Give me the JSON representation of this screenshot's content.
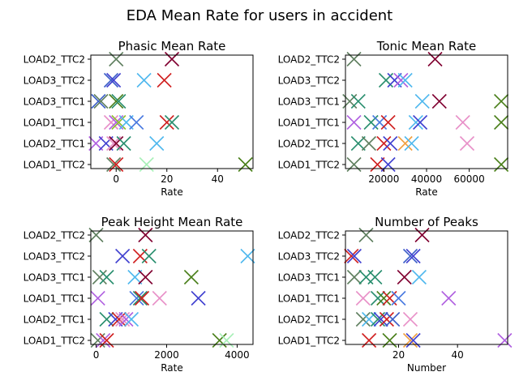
{
  "figure": {
    "title": "EDA Mean Rate for users in accident"
  },
  "chart_data": [
    {
      "type": "scatter",
      "title": "Phasic Mean Rate",
      "xlabel": "Rate",
      "ylabel": "",
      "xlim": [
        -10,
        54
      ],
      "xticks": [
        0,
        20,
        40
      ],
      "categories": [
        "LOAD1_TTC2",
        "LOAD2_TTC1",
        "LOAD1_TTC1",
        "LOAD3_TTC1",
        "LOAD3_TTC2",
        "LOAD2_TTC2"
      ],
      "points": [
        {
          "category": "LOAD2_TTC2",
          "x": 0,
          "color": "#5f7f5f"
        },
        {
          "category": "LOAD2_TTC2",
          "x": 22,
          "color": "#800030"
        },
        {
          "category": "LOAD3_TTC2",
          "x": -2,
          "color": "#3c5fc8"
        },
        {
          "category": "LOAD3_TTC2",
          "x": -1,
          "color": "#4040d0"
        },
        {
          "category": "LOAD3_TTC2",
          "x": 11,
          "color": "#4fb8ee"
        },
        {
          "category": "LOAD3_TTC2",
          "x": 19,
          "color": "#d02020"
        },
        {
          "category": "LOAD3_TTC1",
          "x": -7,
          "color": "#3c5fc8"
        },
        {
          "category": "LOAD3_TTC1",
          "x": -6,
          "color": "#5f7f5f"
        },
        {
          "category": "LOAD3_TTC1",
          "x": 0,
          "color": "#4a7f1a"
        },
        {
          "category": "LOAD3_TTC1",
          "x": 1,
          "color": "#2a8f6f"
        },
        {
          "category": "LOAD1_TTC1",
          "x": -2,
          "color": "#e890c8"
        },
        {
          "category": "LOAD1_TTC1",
          "x": 0,
          "color": "#b060e0"
        },
        {
          "category": "LOAD1_TTC1",
          "x": 1,
          "color": "#8fbf30"
        },
        {
          "category": "LOAD1_TTC1",
          "x": 4,
          "color": "#4fb8ee"
        },
        {
          "category": "LOAD1_TTC1",
          "x": 8,
          "color": "#4a7ae0"
        },
        {
          "category": "LOAD1_TTC1",
          "x": 20,
          "color": "#d02020"
        },
        {
          "category": "LOAD1_TTC1",
          "x": 22,
          "color": "#2a8f6f"
        },
        {
          "category": "LOAD2_TTC1",
          "x": -8,
          "color": "#b060e0"
        },
        {
          "category": "LOAD2_TTC1",
          "x": -4,
          "color": "#4040d0"
        },
        {
          "category": "LOAD2_TTC1",
          "x": -1,
          "color": "#e890c8"
        },
        {
          "category": "LOAD2_TTC1",
          "x": 0,
          "color": "#800030"
        },
        {
          "category": "LOAD2_TTC1",
          "x": 3,
          "color": "#2a8f6f"
        },
        {
          "category": "LOAD2_TTC1",
          "x": 16,
          "color": "#4fb8ee"
        },
        {
          "category": "LOAD1_TTC2",
          "x": -1,
          "color": "#5f7f5f"
        },
        {
          "category": "LOAD1_TTC2",
          "x": 0,
          "color": "#d02020"
        },
        {
          "category": "LOAD1_TTC2",
          "x": 12,
          "color": "#a8f0b8"
        },
        {
          "category": "LOAD1_TTC2",
          "x": 51,
          "color": "#4a7f1a"
        }
      ]
    },
    {
      "type": "scatter",
      "title": "Tonic Mean Rate",
      "xlabel": "Rate",
      "ylabel": "",
      "xlim": [
        2000,
        78000
      ],
      "xticks": [
        20000,
        40000,
        60000
      ],
      "categories": [
        "LOAD1_TTC2",
        "LOAD2_TTC1",
        "LOAD1_TTC1",
        "LOAD3_TTC1",
        "LOAD3_TTC2",
        "LOAD2_TTC2"
      ],
      "points": [
        {
          "category": "LOAD2_TTC2",
          "x": 6000,
          "color": "#5f7f5f"
        },
        {
          "category": "LOAD2_TTC2",
          "x": 44000,
          "color": "#800030"
        },
        {
          "category": "LOAD3_TTC2",
          "x": 21000,
          "color": "#2a8f6f"
        },
        {
          "category": "LOAD3_TTC2",
          "x": 25000,
          "color": "#4040d0"
        },
        {
          "category": "LOAD3_TTC2",
          "x": 28000,
          "color": "#b060e0"
        },
        {
          "category": "LOAD3_TTC2",
          "x": 30000,
          "color": "#4fb8ee"
        },
        {
          "category": "LOAD3_TTC1",
          "x": 4000,
          "color": "#5f7f5f"
        },
        {
          "category": "LOAD3_TTC1",
          "x": 8000,
          "color": "#2a8f6f"
        },
        {
          "category": "LOAD3_TTC1",
          "x": 38000,
          "color": "#4fb8ee"
        },
        {
          "category": "LOAD3_TTC1",
          "x": 46000,
          "color": "#800030"
        },
        {
          "category": "LOAD3_TTC1",
          "x": 75000,
          "color": "#4a7f1a"
        },
        {
          "category": "LOAD1_TTC1",
          "x": 6000,
          "color": "#b060e0"
        },
        {
          "category": "LOAD1_TTC1",
          "x": 14000,
          "color": "#2a8f6f"
        },
        {
          "category": "LOAD1_TTC1",
          "x": 18000,
          "color": "#4a7ae0"
        },
        {
          "category": "LOAD1_TTC1",
          "x": 22000,
          "color": "#d02020"
        },
        {
          "category": "LOAD1_TTC1",
          "x": 35000,
          "color": "#4fb8ee"
        },
        {
          "category": "LOAD1_TTC1",
          "x": 37000,
          "color": "#4040d0"
        },
        {
          "category": "LOAD1_TTC1",
          "x": 57000,
          "color": "#e890c8"
        },
        {
          "category": "LOAD1_TTC1",
          "x": 75000,
          "color": "#4a7f1a"
        },
        {
          "category": "LOAD2_TTC1",
          "x": 8000,
          "color": "#2a8f6f"
        },
        {
          "category": "LOAD2_TTC1",
          "x": 13000,
          "color": "#5f7f5f"
        },
        {
          "category": "LOAD2_TTC1",
          "x": 20000,
          "color": "#d02020"
        },
        {
          "category": "LOAD2_TTC1",
          "x": 23000,
          "color": "#4040d0"
        },
        {
          "category": "LOAD2_TTC1",
          "x": 30000,
          "color": "#f0a040"
        },
        {
          "category": "LOAD2_TTC1",
          "x": 33000,
          "color": "#4fb8ee"
        },
        {
          "category": "LOAD2_TTC1",
          "x": 59000,
          "color": "#e890c8"
        },
        {
          "category": "LOAD1_TTC2",
          "x": 6000,
          "color": "#5f7f5f"
        },
        {
          "category": "LOAD1_TTC2",
          "x": 17000,
          "color": "#d02020"
        },
        {
          "category": "LOAD1_TTC2",
          "x": 22000,
          "color": "#4040d0"
        },
        {
          "category": "LOAD1_TTC2",
          "x": 75000,
          "color": "#4a7f1a"
        }
      ]
    },
    {
      "type": "scatter",
      "title": "Peak Height Mean Rate",
      "xlabel": "Rate",
      "ylabel": "",
      "xlim": [
        -150,
        4450
      ],
      "xticks": [
        0,
        2000,
        4000
      ],
      "categories": [
        "LOAD1_TTC2",
        "LOAD2_TTC1",
        "LOAD1_TTC1",
        "LOAD3_TTC1",
        "LOAD3_TTC2",
        "LOAD2_TTC2"
      ],
      "points": [
        {
          "category": "LOAD2_TTC2",
          "x": 0,
          "color": "#5f7f5f"
        },
        {
          "category": "LOAD2_TTC2",
          "x": 1400,
          "color": "#800030"
        },
        {
          "category": "LOAD3_TTC2",
          "x": 750,
          "color": "#4040d0"
        },
        {
          "category": "LOAD3_TTC2",
          "x": 1250,
          "color": "#d02020"
        },
        {
          "category": "LOAD3_TTC2",
          "x": 1500,
          "color": "#2a8f6f"
        },
        {
          "category": "LOAD3_TTC2",
          "x": 4300,
          "color": "#4fb8ee"
        },
        {
          "category": "LOAD3_TTC1",
          "x": 100,
          "color": "#5f7f5f"
        },
        {
          "category": "LOAD3_TTC1",
          "x": 300,
          "color": "#2a8f6f"
        },
        {
          "category": "LOAD3_TTC1",
          "x": 1100,
          "color": "#4fb8ee"
        },
        {
          "category": "LOAD3_TTC1",
          "x": 1400,
          "color": "#800030"
        },
        {
          "category": "LOAD3_TTC1",
          "x": 2700,
          "color": "#4a7f1a"
        },
        {
          "category": "LOAD1_TTC1",
          "x": 50,
          "color": "#b060e0"
        },
        {
          "category": "LOAD1_TTC1",
          "x": 1150,
          "color": "#4a7ae0"
        },
        {
          "category": "LOAD1_TTC1",
          "x": 1250,
          "color": "#2a8f6f"
        },
        {
          "category": "LOAD1_TTC1",
          "x": 1300,
          "color": "#d02020"
        },
        {
          "category": "LOAD1_TTC1",
          "x": 1800,
          "color": "#e890c8"
        },
        {
          "category": "LOAD1_TTC1",
          "x": 2900,
          "color": "#4040d0"
        },
        {
          "category": "LOAD2_TTC1",
          "x": 300,
          "color": "#2a8f6f"
        },
        {
          "category": "LOAD2_TTC1",
          "x": 550,
          "color": "#4040d0"
        },
        {
          "category": "LOAD2_TTC1",
          "x": 650,
          "color": "#d02020"
        },
        {
          "category": "LOAD2_TTC1",
          "x": 750,
          "color": "#e890c8"
        },
        {
          "category": "LOAD2_TTC1",
          "x": 850,
          "color": "#b060e0"
        },
        {
          "category": "LOAD2_TTC1",
          "x": 1000,
          "color": "#4fb8ee"
        },
        {
          "category": "LOAD1_TTC2",
          "x": 50,
          "color": "#5f7f5f"
        },
        {
          "category": "LOAD1_TTC2",
          "x": 200,
          "color": "#b060e0"
        },
        {
          "category": "LOAD1_TTC2",
          "x": 300,
          "color": "#d02020"
        },
        {
          "category": "LOAD1_TTC2",
          "x": 3500,
          "color": "#4a7f1a"
        },
        {
          "category": "LOAD1_TTC2",
          "x": 3700,
          "color": "#a8f0b8"
        }
      ]
    },
    {
      "type": "scatter",
      "title": "Number of Peaks",
      "xlabel": "Number",
      "ylabel": "",
      "xlim": [
        2,
        57
      ],
      "xticks": [
        20,
        40
      ],
      "categories": [
        "LOAD1_TTC2",
        "LOAD2_TTC1",
        "LOAD1_TTC1",
        "LOAD3_TTC1",
        "LOAD3_TTC2",
        "LOAD2_TTC2"
      ],
      "points": [
        {
          "category": "LOAD2_TTC2",
          "x": 9,
          "color": "#5f7f5f"
        },
        {
          "category": "LOAD2_TTC2",
          "x": 28,
          "color": "#800030"
        },
        {
          "category": "LOAD3_TTC2",
          "x": 4,
          "color": "#d02020"
        },
        {
          "category": "LOAD3_TTC2",
          "x": 5,
          "color": "#4040d0"
        },
        {
          "category": "LOAD3_TTC2",
          "x": 24,
          "color": "#3c5fc8"
        },
        {
          "category": "LOAD3_TTC2",
          "x": 25,
          "color": "#4040d0"
        },
        {
          "category": "LOAD3_TTC1",
          "x": 5,
          "color": "#5f7f5f"
        },
        {
          "category": "LOAD3_TTC1",
          "x": 9,
          "color": "#2a8f6f"
        },
        {
          "category": "LOAD3_TTC1",
          "x": 12,
          "color": "#2a8f6f"
        },
        {
          "category": "LOAD3_TTC1",
          "x": 22,
          "color": "#800030"
        },
        {
          "category": "LOAD3_TTC1",
          "x": 27,
          "color": "#4fb8ee"
        },
        {
          "category": "LOAD1_TTC1",
          "x": 8,
          "color": "#e890c8"
        },
        {
          "category": "LOAD1_TTC1",
          "x": 13,
          "color": "#2a8f6f"
        },
        {
          "category": "LOAD1_TTC1",
          "x": 15,
          "color": "#4a7f1a"
        },
        {
          "category": "LOAD1_TTC1",
          "x": 17,
          "color": "#d02020"
        },
        {
          "category": "LOAD1_TTC1",
          "x": 20,
          "color": "#4a7ae0"
        },
        {
          "category": "LOAD1_TTC1",
          "x": 37,
          "color": "#b060e0"
        },
        {
          "category": "LOAD2_TTC1",
          "x": 8,
          "color": "#5f7f5f"
        },
        {
          "category": "LOAD2_TTC1",
          "x": 10,
          "color": "#4fb8ee"
        },
        {
          "category": "LOAD2_TTC1",
          "x": 13,
          "color": "#2a8f6f"
        },
        {
          "category": "LOAD2_TTC1",
          "x": 14,
          "color": "#4040d0"
        },
        {
          "category": "LOAD2_TTC1",
          "x": 16,
          "color": "#d02020"
        },
        {
          "category": "LOAD2_TTC1",
          "x": 18,
          "color": "#3c5fc8"
        },
        {
          "category": "LOAD2_TTC1",
          "x": 24,
          "color": "#e890c8"
        },
        {
          "category": "LOAD1_TTC2",
          "x": 10,
          "color": "#d02020"
        },
        {
          "category": "LOAD1_TTC2",
          "x": 17,
          "color": "#4a7f1a"
        },
        {
          "category": "LOAD1_TTC2",
          "x": 24,
          "color": "#f0a040"
        },
        {
          "category": "LOAD1_TTC2",
          "x": 25,
          "color": "#4040d0"
        },
        {
          "category": "LOAD1_TTC2",
          "x": 56,
          "color": "#b060e0"
        }
      ]
    }
  ]
}
